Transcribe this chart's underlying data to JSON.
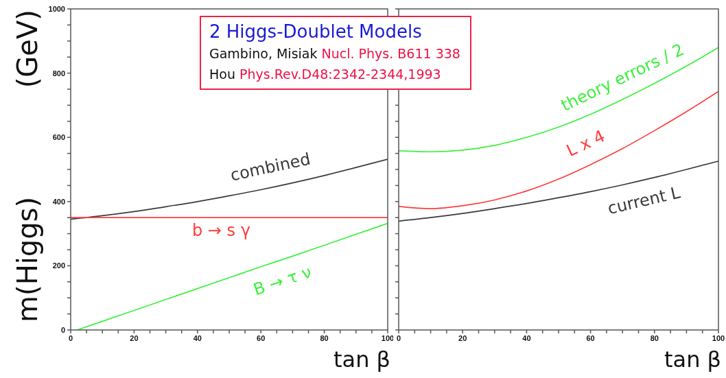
{
  "chart_data": [
    {
      "type": "line",
      "xlabel": "tan β",
      "ylabel": "m(Higgs) (GeV)",
      "annotations": [
        "2 Higgs-Doublet Models",
        "Gambino, Misiak",
        "Nucl. Phys. B611 338",
        "Hou",
        "Phys.Rev.D48:2342-2344,1993"
      ],
      "x": [
        0,
        10,
        20,
        30,
        40,
        50,
        60,
        70,
        80,
        90,
        100
      ],
      "xlim": [
        0,
        100
      ],
      "xticks": [
        0,
        {
          "value": 5,
          "label": null
        },
        {
          "value": 10,
          "label": null
        },
        {
          "value": 15,
          "label": null
        },
        20,
        {
          "value": 25,
          "label": null
        },
        {
          "value": 30,
          "label": null
        },
        {
          "value": 35,
          "label": null
        },
        40,
        {
          "value": 45,
          "label": null
        },
        {
          "value": 50,
          "label": null
        },
        {
          "value": 55,
          "label": null
        },
        60,
        {
          "value": 65,
          "label": null
        },
        {
          "value": 70,
          "label": null
        },
        {
          "value": 75,
          "label": null
        },
        80,
        {
          "value": 85,
          "label": null
        },
        {
          "value": 90,
          "label": null
        },
        {
          "value": 95,
          "label": null
        },
        100
      ],
      "ylim": [
        0,
        1000
      ],
      "yticks": [
        0,
        {
          "value": 50,
          "label": null
        },
        {
          "value": 100,
          "label": null
        },
        {
          "value": 150,
          "label": null
        },
        200,
        {
          "value": 250,
          "label": null
        },
        {
          "value": 300,
          "label": null
        },
        {
          "value": 350,
          "label": null
        },
        400,
        {
          "value": 450,
          "label": null
        },
        {
          "value": 500,
          "label": null
        },
        {
          "value": 550,
          "label": null
        },
        600,
        {
          "value": 650,
          "label": null
        },
        {
          "value": 700,
          "label": null
        },
        {
          "value": 750,
          "label": null
        },
        800,
        {
          "value": 850,
          "label": null
        },
        {
          "value": 900,
          "label": null
        },
        {
          "value": 950,
          "label": null
        },
        1000
      ],
      "series": [
        {
          "name": "combined",
          "color": "#3a3a3a",
          "values": [
            345,
            356,
            369,
            384,
            400,
            418,
            437,
            458,
            481,
            506,
            532
          ]
        },
        {
          "name": "b → s γ",
          "color": "#ff3c3c",
          "values": [
            350,
            350,
            350,
            350,
            350,
            350,
            350,
            350,
            350,
            350,
            350
          ]
        },
        {
          "name": "B → τ ν",
          "color": "#3cf03c",
          "x": [
            2,
            10,
            20,
            30,
            40,
            50,
            60,
            70,
            80,
            90,
            100
          ],
          "values": [
            0,
            27,
            61,
            95,
            129,
            163,
            197,
            230,
            264,
            298,
            332
          ]
        }
      ]
    },
    {
      "type": "line",
      "xlabel": "tan β",
      "tick_labels": "x",
      "x": [
        0,
        10,
        20,
        30,
        40,
        50,
        60,
        70,
        80,
        90,
        100
      ],
      "xlim": [
        0,
        100
      ],
      "xticks": [
        0,
        {
          "value": 5,
          "label": null
        },
        {
          "value": 10,
          "label": null
        },
        {
          "value": 15,
          "label": null
        },
        20,
        {
          "value": 25,
          "label": null
        },
        {
          "value": 30,
          "label": null
        },
        {
          "value": 35,
          "label": null
        },
        40,
        {
          "value": 45,
          "label": null
        },
        {
          "value": 50,
          "label": null
        },
        {
          "value": 55,
          "label": null
        },
        60,
        {
          "value": 65,
          "label": null
        },
        {
          "value": 70,
          "label": null
        },
        {
          "value": 75,
          "label": null
        },
        80,
        {
          "value": 85,
          "label": null
        },
        {
          "value": 90,
          "label": null
        },
        {
          "value": 95,
          "label": null
        },
        100
      ],
      "ylim": [
        0,
        1000
      ],
      "yticks": [
        0,
        {
          "value": 50,
          "label": null
        },
        {
          "value": 100,
          "label": null
        },
        {
          "value": 150,
          "label": null
        },
        200,
        {
          "value": 250,
          "label": null
        },
        {
          "value": 300,
          "label": null
        },
        {
          "value": 350,
          "label": null
        },
        400,
        {
          "value": 450,
          "label": null
        },
        {
          "value": 500,
          "label": null
        },
        {
          "value": 550,
          "label": null
        },
        600,
        {
          "value": 650,
          "label": null
        },
        {
          "value": 700,
          "label": null
        },
        {
          "value": 750,
          "label": null
        },
        800,
        {
          "value": 850,
          "label": null
        },
        {
          "value": 900,
          "label": null
        },
        {
          "value": 950,
          "label": null
        },
        1000
      ],
      "series": [
        {
          "name": "theory errors / 2",
          "color": "#3cf03c",
          "values": [
            558,
            555,
            560,
            575,
            600,
            632,
            672,
            718,
            768,
            822,
            880
          ]
        },
        {
          "name": "L x 4",
          "color": "#ff3c3c",
          "values": [
            385,
            378,
            387,
            405,
            433,
            470,
            515,
            565,
            621,
            680,
            743
          ]
        },
        {
          "name": "current L",
          "color": "#3a3a3a",
          "values": [
            339,
            350,
            363,
            378,
            394,
            412,
            431,
            452,
            475,
            500,
            526
          ]
        }
      ]
    }
  ]
}
